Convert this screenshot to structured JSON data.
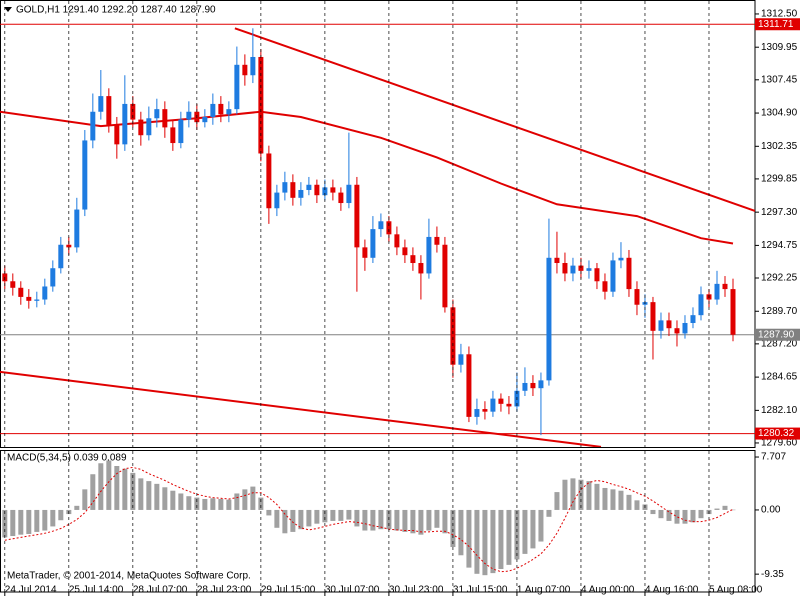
{
  "chart_data": {
    "type": "candlestick",
    "title": "GOLD,H1  1291.40 1292.20 1287.40 1287.90",
    "credit": "MetaTrader, © 2001-2014, MetaQuotes Software Corp.",
    "up_color": "#1e7be0",
    "down_color": "#e00000",
    "grid": true,
    "xlim": [
      -0.6,
      93.75
    ],
    "ylim": [
      1279.29,
      1313.57
    ],
    "yticks": [
      {
        "value": 1312.5,
        "label": "1312.50"
      },
      1309.95,
      1307.45,
      {
        "value": 1304.9,
        "label": "1304.90"
      },
      1302.35,
      1299.85,
      {
        "value": 1297.3,
        "label": "1297.30"
      },
      1294.75,
      1292.25,
      {
        "value": 1289.7,
        "label": "1289.70"
      },
      {
        "value": 1287.2,
        "label": "1287.20"
      },
      1284.65,
      {
        "value": 1282.1,
        "label": "1282.10"
      },
      {
        "value": 1279.6,
        "label": "1279.60"
      }
    ],
    "xticks": [
      {
        "value": 0,
        "label": "24 Jul 2014"
      },
      {
        "value": 8,
        "label": "25 Jul 14:00"
      },
      {
        "value": 16,
        "label": "28 Jul 07:00"
      },
      {
        "value": 24,
        "label": "28 Jul 23:00"
      },
      {
        "value": 32,
        "label": "29 Jul 15:00"
      },
      {
        "value": 40,
        "label": "30 Jul 07:00"
      },
      {
        "value": 48,
        "label": "30 Jul 23:00"
      },
      {
        "value": 56,
        "label": "31 Jul 15:00"
      },
      {
        "value": 64,
        "label": "1 Aug 07:00"
      },
      {
        "value": 72,
        "label": "4 Aug 00:00"
      },
      {
        "value": 80,
        "label": "4 Aug 16:00"
      },
      {
        "value": 88,
        "label": "5 Aug 08:00"
      }
    ],
    "ohlc": [
      [
        1292.6,
        1293.2,
        1291.4,
        1292.0
      ],
      [
        1292.0,
        1292.6,
        1290.9,
        1291.5
      ],
      [
        1291.5,
        1292.0,
        1290.2,
        1290.8
      ],
      [
        1290.8,
        1291.4,
        1289.9,
        1290.5
      ],
      [
        1290.5,
        1291.2,
        1290.0,
        1290.6
      ],
      [
        1290.6,
        1292.2,
        1290.2,
        1291.6
      ],
      [
        1291.6,
        1293.6,
        1291.2,
        1293.0
      ],
      [
        1293.0,
        1295.4,
        1292.6,
        1294.8
      ],
      [
        1294.8,
        1295.4,
        1294.0,
        1294.6
      ],
      [
        1294.6,
        1298.4,
        1294.2,
        1297.5
      ],
      [
        1297.5,
        1303.6,
        1297.0,
        1302.8
      ],
      [
        1302.8,
        1306.4,
        1302.2,
        1305.0
      ],
      [
        1305.0,
        1308.2,
        1304.4,
        1306.2
      ],
      [
        1306.2,
        1306.8,
        1303.4,
        1304.0
      ],
      [
        1304.0,
        1304.6,
        1301.4,
        1302.5
      ],
      [
        1302.5,
        1307.8,
        1302.0,
        1305.6
      ],
      [
        1305.6,
        1306.2,
        1303.8,
        1304.4
      ],
      [
        1304.4,
        1305.0,
        1302.4,
        1303.2
      ],
      [
        1303.2,
        1305.4,
        1302.8,
        1304.5
      ],
      [
        1304.5,
        1306.0,
        1303.8,
        1305.2
      ],
      [
        1305.2,
        1305.8,
        1303.0,
        1303.8
      ],
      [
        1303.8,
        1304.4,
        1302.0,
        1302.6
      ],
      [
        1302.6,
        1305.0,
        1302.2,
        1304.4
      ],
      [
        1304.4,
        1305.8,
        1303.8,
        1305.0
      ],
      [
        1305.0,
        1305.6,
        1303.6,
        1304.2
      ],
      [
        1304.2,
        1305.2,
        1303.8,
        1304.6
      ],
      [
        1304.6,
        1306.4,
        1304.0,
        1305.6
      ],
      [
        1305.6,
        1306.2,
        1304.2,
        1304.8
      ],
      [
        1304.8,
        1305.8,
        1304.2,
        1305.2
      ],
      [
        1305.2,
        1310.0,
        1304.8,
        1308.6
      ],
      [
        1308.6,
        1309.4,
        1307.0,
        1307.8
      ],
      [
        1307.8,
        1311.4,
        1307.2,
        1309.2
      ],
      [
        1309.2,
        1309.8,
        1301.2,
        1301.8
      ],
      [
        1301.8,
        1302.4,
        1296.4,
        1297.6
      ],
      [
        1297.6,
        1299.4,
        1297.0,
        1298.8
      ],
      [
        1298.8,
        1300.4,
        1298.2,
        1299.6
      ],
      [
        1299.6,
        1300.2,
        1297.8,
        1298.4
      ],
      [
        1298.4,
        1299.6,
        1297.8,
        1299.0
      ],
      [
        1299.0,
        1300.0,
        1298.6,
        1299.4
      ],
      [
        1299.4,
        1299.8,
        1298.0,
        1298.6
      ],
      [
        1298.6,
        1299.8,
        1298.2,
        1299.2
      ],
      [
        1299.2,
        1299.8,
        1298.2,
        1298.8
      ],
      [
        1298.8,
        1299.2,
        1297.4,
        1298.0
      ],
      [
        1298.0,
        1303.4,
        1297.6,
        1299.4
      ],
      [
        1299.4,
        1300.0,
        1291.2,
        1294.6
      ],
      [
        1294.6,
        1295.2,
        1292.8,
        1293.8
      ],
      [
        1293.8,
        1297.0,
        1293.4,
        1296.0
      ],
      [
        1296.0,
        1297.2,
        1295.4,
        1296.6
      ],
      [
        1296.6,
        1297.0,
        1295.0,
        1295.6
      ],
      [
        1295.6,
        1296.2,
        1294.0,
        1294.6
      ],
      [
        1294.6,
        1295.2,
        1293.4,
        1294.0
      ],
      [
        1294.0,
        1294.6,
        1292.8,
        1293.4
      ],
      [
        1293.4,
        1294.0,
        1290.6,
        1292.6
      ],
      [
        1292.6,
        1296.8,
        1292.2,
        1295.4
      ],
      [
        1295.4,
        1296.2,
        1294.2,
        1294.8
      ],
      [
        1294.8,
        1295.4,
        1289.6,
        1290.0
      ],
      [
        1290.0,
        1290.6,
        1284.6,
        1285.6
      ],
      [
        1285.6,
        1287.2,
        1285.0,
        1286.4
      ],
      [
        1286.4,
        1287.0,
        1281.2,
        1281.6
      ],
      [
        1281.6,
        1283.0,
        1281.0,
        1282.2
      ],
      [
        1282.2,
        1282.8,
        1281.4,
        1282.0
      ],
      [
        1282.0,
        1283.6,
        1281.6,
        1283.0
      ],
      [
        1283.0,
        1283.4,
        1282.0,
        1282.6
      ],
      [
        1282.6,
        1283.2,
        1281.8,
        1282.4
      ],
      [
        1282.4,
        1285.0,
        1282.0,
        1283.6
      ],
      [
        1283.6,
        1285.4,
        1283.2,
        1284.2
      ],
      [
        1284.2,
        1284.8,
        1283.2,
        1283.8
      ],
      [
        1283.8,
        1285.0,
        1280.2,
        1284.4
      ],
      [
        1284.4,
        1296.8,
        1284.0,
        1293.8
      ],
      [
        1293.8,
        1295.8,
        1292.6,
        1293.4
      ],
      [
        1293.4,
        1294.2,
        1292.0,
        1292.6
      ],
      [
        1292.6,
        1293.8,
        1292.0,
        1293.2
      ],
      [
        1293.2,
        1293.8,
        1292.2,
        1292.8
      ],
      [
        1292.8,
        1293.6,
        1292.2,
        1293.0
      ],
      [
        1293.0,
        1293.4,
        1291.4,
        1292.0
      ],
      [
        1292.0,
        1292.6,
        1290.6,
        1291.2
      ],
      [
        1291.2,
        1294.2,
        1290.8,
        1293.6
      ],
      [
        1293.6,
        1295.0,
        1293.0,
        1293.8
      ],
      [
        1293.8,
        1294.4,
        1290.8,
        1291.4
      ],
      [
        1291.4,
        1292.0,
        1289.4,
        1290.2
      ],
      [
        1290.2,
        1291.0,
        1289.2,
        1290.4
      ],
      [
        1290.4,
        1290.8,
        1286.0,
        1288.2
      ],
      [
        1288.2,
        1289.6,
        1287.6,
        1289.0
      ],
      [
        1289.0,
        1289.6,
        1287.8,
        1288.4
      ],
      [
        1288.4,
        1289.0,
        1287.0,
        1288.0
      ],
      [
        1288.0,
        1289.4,
        1287.6,
        1288.8
      ],
      [
        1288.8,
        1290.0,
        1288.4,
        1289.4
      ],
      [
        1289.4,
        1291.6,
        1289.0,
        1291.0
      ],
      [
        1291.0,
        1291.4,
        1290.0,
        1290.6
      ],
      [
        1290.6,
        1292.8,
        1290.2,
        1291.8
      ],
      [
        1291.8,
        1292.4,
        1290.8,
        1291.4
      ],
      [
        1291.4,
        1292.2,
        1287.4,
        1287.9
      ]
    ],
    "lines": [
      {
        "color": "#e00000",
        "x": [
          -0.6,
          12,
          24,
          32,
          37,
          47,
          54,
          62,
          69,
          79,
          87,
          91
        ],
        "values": [
          1305.0,
          1303.9,
          1304.5,
          1305.0,
          1304.6,
          1303.0,
          1301.5,
          1299.5,
          1297.9,
          1297.0,
          1295.3,
          1294.9
        ]
      },
      {
        "color": "#e00000",
        "x": [
          28.75,
          93.75
        ],
        "values": [
          1311.4,
          1297.4
        ]
      },
      {
        "color": "#e00000",
        "x": [
          -0.6,
          74.5
        ],
        "values": [
          1285.05,
          1279.3
        ]
      }
    ],
    "price_levels": [
      {
        "value": 1311.71,
        "color": "#e00000"
      },
      {
        "value": 1287.9,
        "label": "1287.90",
        "color": "#808080"
      },
      {
        "value": 1280.32,
        "color": "#e00000"
      }
    ],
    "macd": {
      "label": "MACD(5,34,5) 0.039 0.089",
      "hist_color": "#a0a0a0",
      "signal_color": "#e00000",
      "ylim": [
        -11.95,
        8.73
      ],
      "yticks": [
        7.707,
        {
          "value": 0,
          "label": "0.00"
        },
        -9.35
      ],
      "histogram": [
        -4.0,
        -3.8,
        -3.6,
        -3.5,
        -3.2,
        -3.0,
        -2.4,
        -1.5,
        -0.6,
        0.6,
        3.0,
        5.2,
        6.8,
        7.2,
        6.4,
        6.0,
        5.4,
        4.6,
        4.2,
        3.8,
        3.3,
        2.8,
        2.4,
        2.0,
        1.8,
        1.6,
        1.7,
        1.6,
        1.5,
        2.4,
        3.0,
        3.4,
        1.8,
        -0.8,
        -2.6,
        -3.4,
        -3.2,
        -2.8,
        -2.4,
        -2.0,
        -1.8,
        -1.6,
        -1.6,
        -1.4,
        -2.4,
        -3.0,
        -3.0,
        -2.8,
        -2.8,
        -3.0,
        -3.2,
        -3.4,
        -3.6,
        -3.0,
        -2.6,
        -3.4,
        -5.4,
        -6.6,
        -8.4,
        -9.3,
        -9.5,
        -9.2,
        -8.6,
        -8.0,
        -7.2,
        -6.4,
        -5.6,
        -4.6,
        -1.0,
        2.6,
        4.4,
        4.6,
        4.4,
        4.2,
        3.8,
        3.2,
        3.0,
        2.8,
        2.2,
        1.4,
        0.8,
        -0.6,
        -1.2,
        -1.6,
        -2.0,
        -2.0,
        -1.8,
        -1.2,
        -0.6,
        0.2,
        0.6,
        0.039
      ],
      "signal": [
        -4.4,
        -4.2,
        -4.0,
        -3.8,
        -3.6,
        -3.4,
        -3.1,
        -2.7,
        -2.1,
        -1.4,
        -0.4,
        1.1,
        2.7,
        4.1,
        5.3,
        6.0,
        6.2,
        5.9,
        5.3,
        4.8,
        4.3,
        3.7,
        3.2,
        2.7,
        2.3,
        2.0,
        1.8,
        1.7,
        1.6,
        1.8,
        2.1,
        2.5,
        2.5,
        1.8,
        0.8,
        -0.6,
        -1.8,
        -2.6,
        -2.9,
        -2.7,
        -2.4,
        -2.1,
        -1.9,
        -1.7,
        -1.8,
        -2.0,
        -2.3,
        -2.5,
        -2.8,
        -2.9,
        -3.0,
        -3.0,
        -3.2,
        -3.2,
        -3.1,
        -3.1,
        -3.6,
        -4.3,
        -5.3,
        -6.6,
        -7.8,
        -8.6,
        -9.0,
        -8.9,
        -8.5,
        -7.9,
        -7.2,
        -6.4,
        -5.1,
        -3.4,
        -1.2,
        1.2,
        3.0,
        4.0,
        4.3,
        4.1,
        3.7,
        3.4,
        3.0,
        2.5,
        2.0,
        1.3,
        0.5,
        -0.3,
        -1.0,
        -1.5,
        -1.7,
        -1.7,
        -1.5,
        -1.1,
        -0.5,
        0.089
      ]
    }
  }
}
